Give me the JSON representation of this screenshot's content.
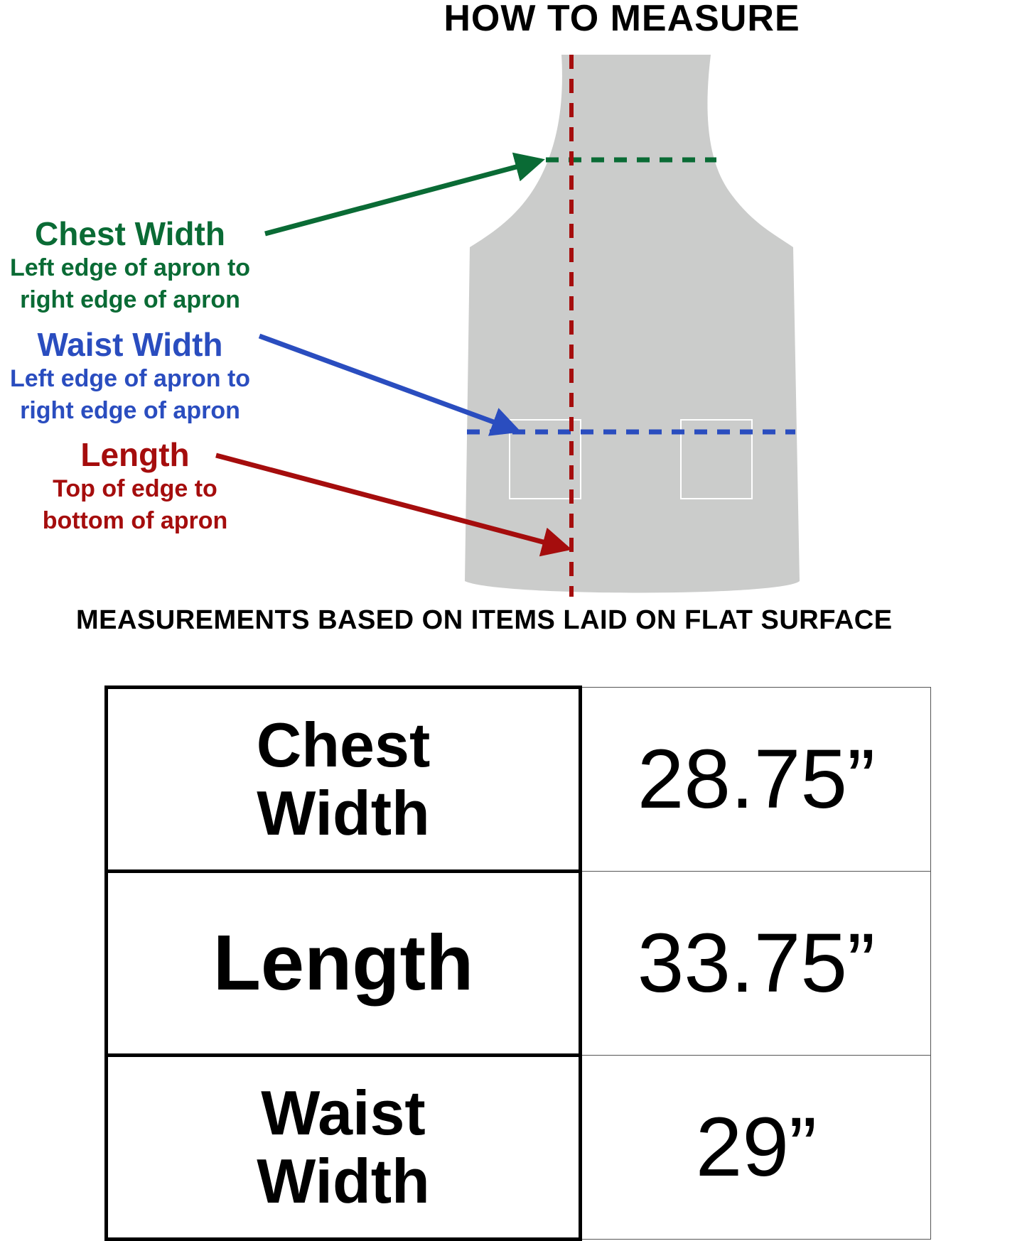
{
  "title": "HOW TO MEASURE",
  "colors": {
    "chest": "#0a6b35",
    "waist": "#2a4dbf",
    "length": "#a50d0d",
    "apron": "#cbcccb"
  },
  "labels": {
    "chest": {
      "heading": "Chest Width",
      "line1": "Left edge of apron to",
      "line2": "right edge of apron"
    },
    "waist": {
      "heading": "Waist Width",
      "line1": "Left edge of apron to",
      "line2": "right edge of apron"
    },
    "length": {
      "heading": "Length",
      "line1": "Top of edge to",
      "line2": "bottom of apron"
    }
  },
  "footnote": "MEASUREMENTS BASED ON ITEMS LAID ON FLAT SURFACE",
  "table": [
    {
      "label": "Chest Width",
      "value": "28.75”"
    },
    {
      "label": "Length",
      "value": "33.75”"
    },
    {
      "label": "Waist Width",
      "value": "29”"
    }
  ]
}
